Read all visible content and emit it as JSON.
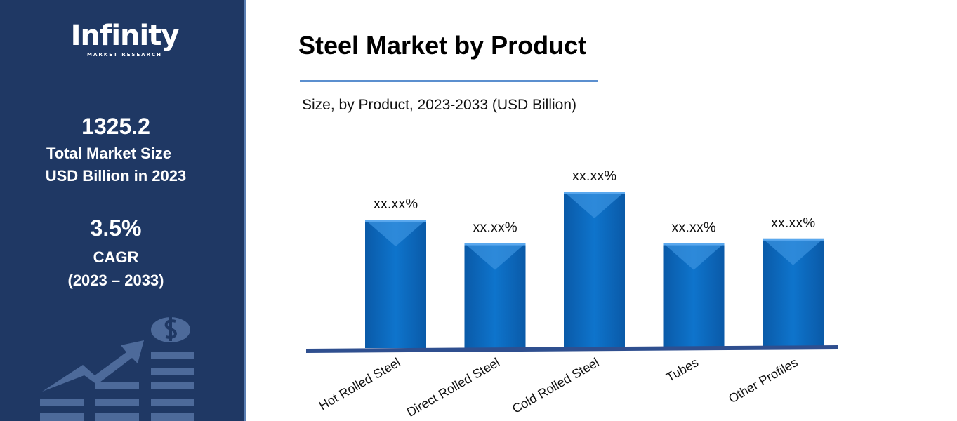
{
  "sidebar": {
    "logo": {
      "name": "Infinity",
      "tagline": "MARKET RESEARCH"
    },
    "market_size": "1325.2",
    "market_size_label_1": "Total Market Size",
    "market_size_label_2": "USD Billion in 2023",
    "cagr": "3.5%",
    "cagr_label": "CAGR",
    "cagr_period": "(2023 – 2033)",
    "illustration_icon": "growth-chart-dollar-icon"
  },
  "chart_data": {
    "type": "bar",
    "title": "Steel Market by Product",
    "subtitle": "Size, by Product, 2023-2033 (USD Billion)",
    "categories": [
      "Hot Rolled Steel",
      "Direct Rolled Steel",
      "Cold Rolled Steel",
      "Tubes",
      "Other Profiles"
    ],
    "values": [
      82,
      67,
      100,
      67,
      70
    ],
    "data_labels": [
      "xx.xx%",
      "xx.xx%",
      "xx.xx%",
      "xx.xx%",
      "xx.xx%"
    ],
    "bar_color": "#0b6fc4",
    "axis_color": "#2f4f8f",
    "grid": false,
    "legend": "none"
  }
}
